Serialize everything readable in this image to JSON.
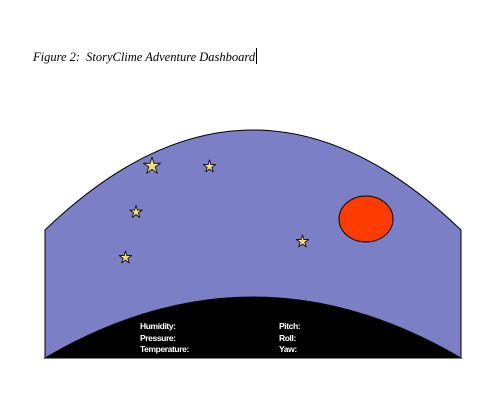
{
  "caption": {
    "figure_label": "Figure 2:",
    "title": "StoryClime Adventure Dashboard"
  },
  "scene": {
    "sky_color": "#7b7fc5",
    "sun_color": "#ff3c00",
    "ground_color": "#000000",
    "star_color": "#f4e07a",
    "icons": [
      "star-icon",
      "sun-icon"
    ]
  },
  "readouts": {
    "environment": {
      "humidity_label": "Humidity:",
      "pressure_label": "Pressure:",
      "temperature_label": "Temperature:"
    },
    "orientation": {
      "pitch_label": "Pitch:",
      "roll_label": "Roll:",
      "yaw_label": "Yaw:"
    }
  }
}
